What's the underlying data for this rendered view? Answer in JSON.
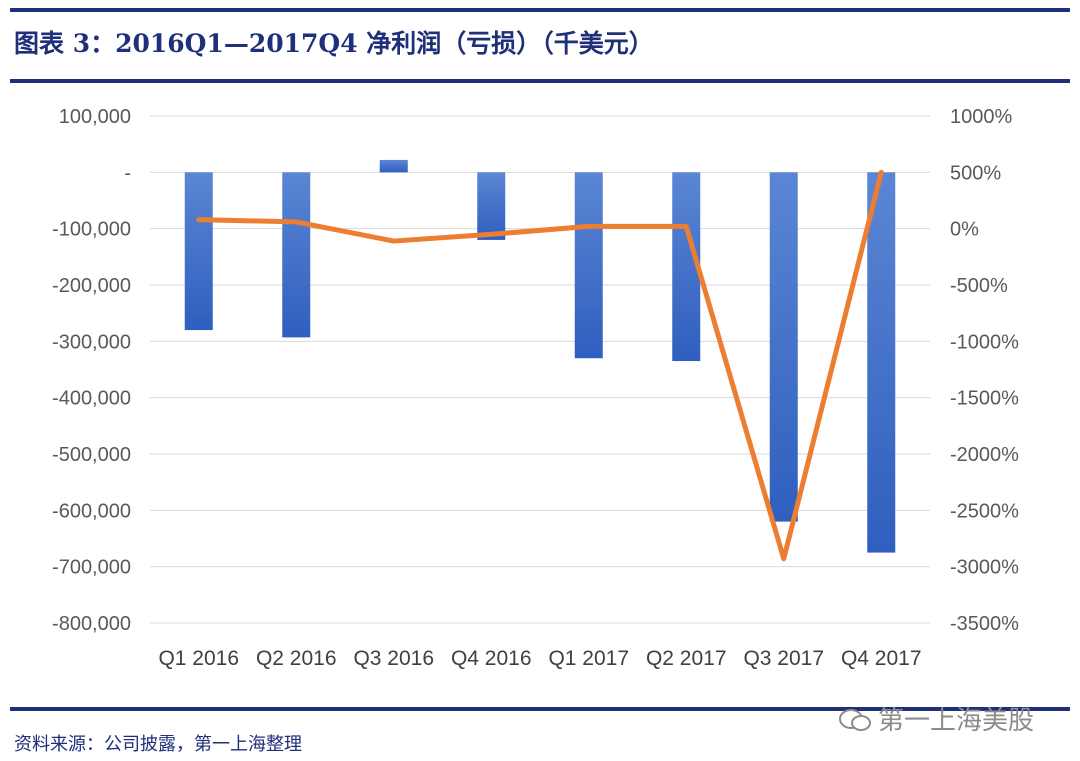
{
  "header": {
    "title": "图表 3：2016Q1—2017Q4 净利润（亏损）（千美元）"
  },
  "footer": {
    "source": "资料来源：公司披露，第一上海整理",
    "watermark": "第一上海美股"
  },
  "colors": {
    "rule": "#1f2f7a",
    "bar": "#4472c4",
    "line": "#ed7d31",
    "axis_text": "#595959",
    "grid": "#d9d9d9"
  },
  "chart_data": {
    "type": "bar+line",
    "categories": [
      "Q1 2016",
      "Q2 2016",
      "Q3 2016",
      "Q4 2016",
      "Q1 2017",
      "Q2 2017",
      "Q3 2017",
      "Q4 2017"
    ],
    "y_left": {
      "ylim": [
        -800000,
        100000
      ],
      "ticks": [
        100000,
        0,
        -100000,
        -200000,
        -300000,
        -400000,
        -500000,
        -600000,
        -700000,
        -800000
      ],
      "tick_labels": [
        "100,000",
        "-",
        "-100,000",
        "-200,000",
        "-300,000",
        "-400,000",
        "-500,000",
        "-600,000",
        "-700,000",
        "-800,000"
      ]
    },
    "y_right": {
      "ylim": [
        -3500,
        1000
      ],
      "ticks": [
        1000,
        500,
        0,
        -500,
        -1000,
        -1500,
        -2000,
        -2500,
        -3000,
        -3500
      ],
      "tick_labels": [
        "1000%",
        "500%",
        "0%",
        "-500%",
        "-1000%",
        "-1500%",
        "-2000%",
        "-2500%",
        "-3000%",
        "-3500%"
      ]
    },
    "series": [
      {
        "type": "bar",
        "axis": "left",
        "values": [
          -280000,
          -293000,
          22000,
          -120000,
          -330000,
          -335000,
          -620000,
          -675000
        ]
      },
      {
        "type": "line",
        "axis": "right",
        "values": [
          80,
          60,
          -110,
          -50,
          20,
          20,
          -2930,
          500
        ]
      }
    ],
    "grid": true
  }
}
